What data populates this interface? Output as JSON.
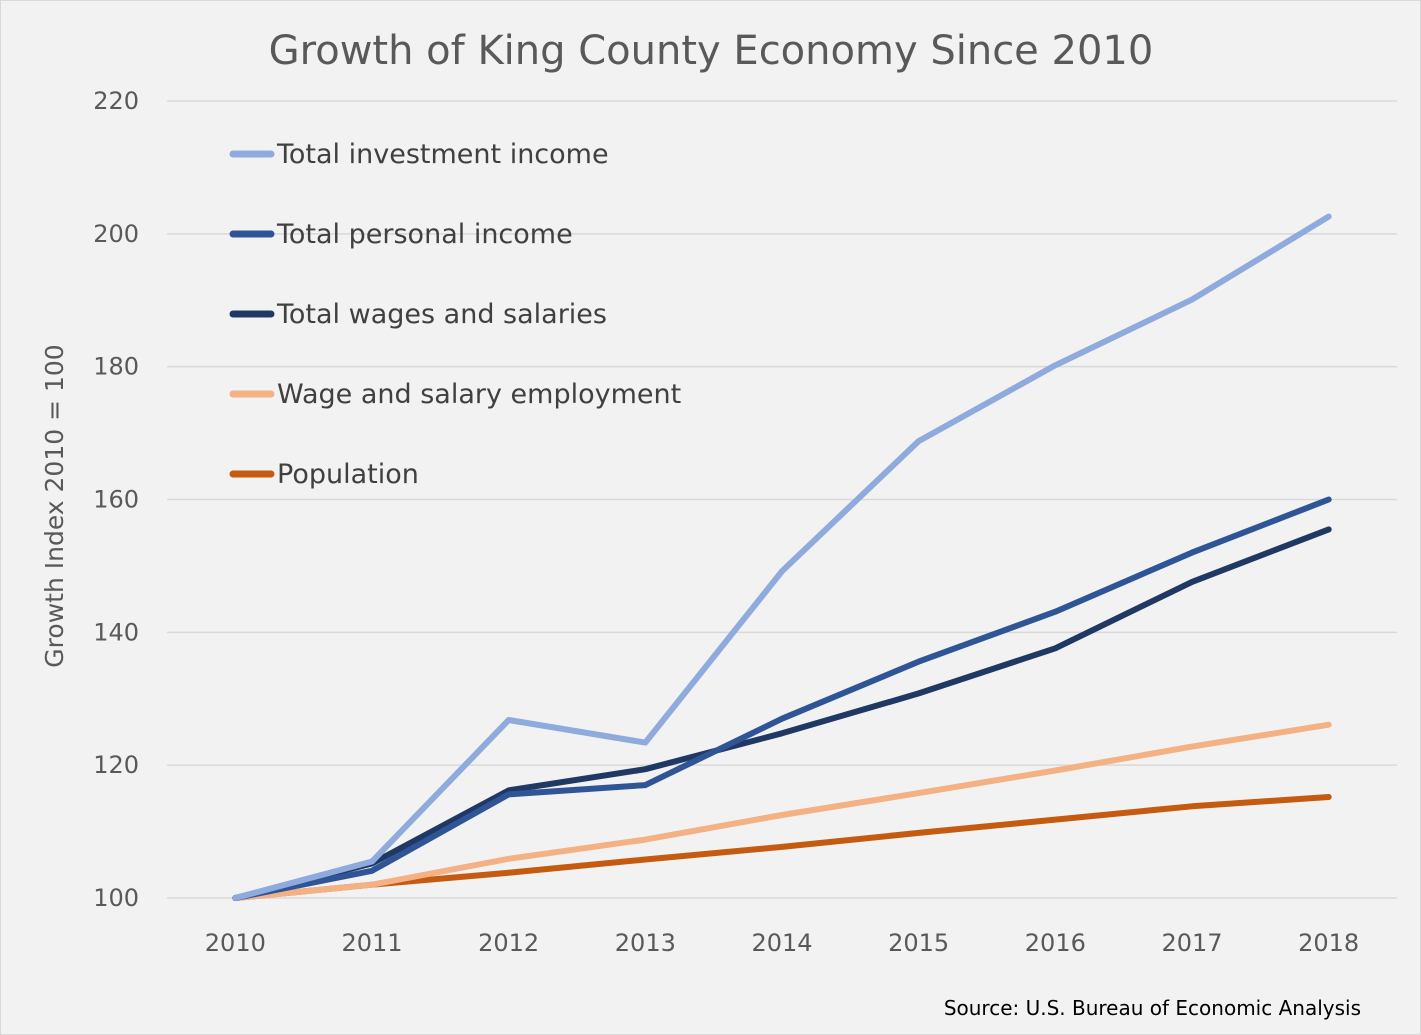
{
  "chart_data": {
    "type": "line",
    "title": "Growth of King County Economy Since 2010",
    "ylabel": "Growth Index 2010 = 100",
    "xlabel": "",
    "x": [
      "2010",
      "2011",
      "2012",
      "2013",
      "2014",
      "2015",
      "2016",
      "2017",
      "2018"
    ],
    "ylim": [
      100,
      220
    ],
    "yticks": [
      "100",
      "120",
      "140",
      "160",
      "180",
      "200",
      "220"
    ],
    "grid": true,
    "legend_position": "top-left",
    "source": "Source: U.S. Bureau of Economic Analysis",
    "series": [
      {
        "name": "Total investment income",
        "color": "#8faadc",
        "values": [
          100,
          105.5,
          126.8,
          123.4,
          149.2,
          168.8,
          180.2,
          190.1,
          202.6
        ]
      },
      {
        "name": "Total personal income",
        "color": "#2f5597",
        "values": [
          100,
          104.1,
          115.6,
          117.0,
          127.0,
          135.6,
          143.1,
          152.0,
          160.0
        ]
      },
      {
        "name": "Total wages and salaries",
        "color": "#203864",
        "values": [
          100,
          105.2,
          116.2,
          119.4,
          124.8,
          130.8,
          137.6,
          147.6,
          155.5
        ]
      },
      {
        "name": "Wage and salary employment",
        "color": "#f4b183",
        "values": [
          100,
          102.0,
          105.9,
          108.8,
          112.5,
          115.8,
          119.2,
          122.8,
          126.1
        ]
      },
      {
        "name": "Population",
        "color": "#c55a11",
        "values": [
          100,
          102.0,
          103.8,
          105.8,
          107.7,
          109.8,
          111.8,
          113.8,
          115.2
        ]
      }
    ]
  }
}
